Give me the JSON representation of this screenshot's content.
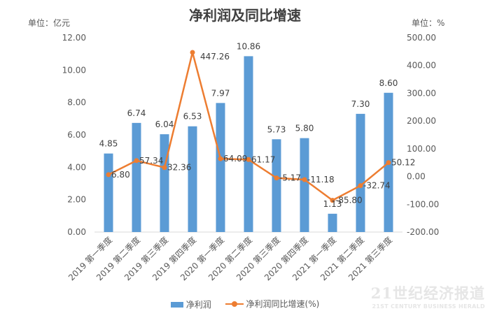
{
  "chart_data": {
    "type": "bar+line",
    "title": "净利润及同比增速",
    "unit_left": "单位：亿元",
    "unit_right": "单位：%",
    "categories": [
      "2019 第一季度",
      "2019 第二季度",
      "2019 第三季度",
      "2019 第四季度",
      "2020 第一季度",
      "2020 第二季度",
      "2020 第三季度",
      "2020 第四季度",
      "2021 第一季度",
      "2021 第二季度",
      "2021 第三季度"
    ],
    "series": [
      {
        "name": "净利润",
        "type": "bar",
        "axis": "left",
        "color": "#5b9bd5",
        "values": [
          4.85,
          6.74,
          6.04,
          6.53,
          7.97,
          10.86,
          5.73,
          5.8,
          1.13,
          7.3,
          8.6
        ],
        "labels": [
          "4.85",
          "6.74",
          "6.04",
          "6.53",
          "7.97",
          "10.86",
          "5.73",
          "5.80",
          "1.13",
          "7.30",
          "8.60"
        ]
      },
      {
        "name": "净利润同比增速(%)",
        "type": "line",
        "axis": "right",
        "color": "#ed7d31",
        "values": [
          6.8,
          57.34,
          32.36,
          447.26,
          64.09,
          61.17,
          -5.17,
          -11.18,
          -85.8,
          -32.74,
          50.12
        ],
        "labels": [
          "6.80",
          "57.34",
          "32.36",
          "447.26",
          "64.09",
          "61.17",
          "-5.17",
          "-11.18",
          "-85.80",
          "-32.74",
          "50.12"
        ]
      }
    ],
    "y_left": {
      "min": 0,
      "max": 12,
      "ticks": [
        "0.00",
        "2.00",
        "4.00",
        "6.00",
        "8.00",
        "10.00",
        "12.00"
      ]
    },
    "y_right": {
      "min": -200,
      "max": 500,
      "ticks": [
        "-200.00",
        "-100.00",
        "0.00",
        "100.00",
        "200.00",
        "300.00",
        "400.00",
        "500.00"
      ]
    },
    "legend_position": "bottom",
    "grid": false
  },
  "watermark": {
    "main": "21世纪经济报道",
    "sub": "21ST CENTURY BUSINESS HERALD"
  }
}
